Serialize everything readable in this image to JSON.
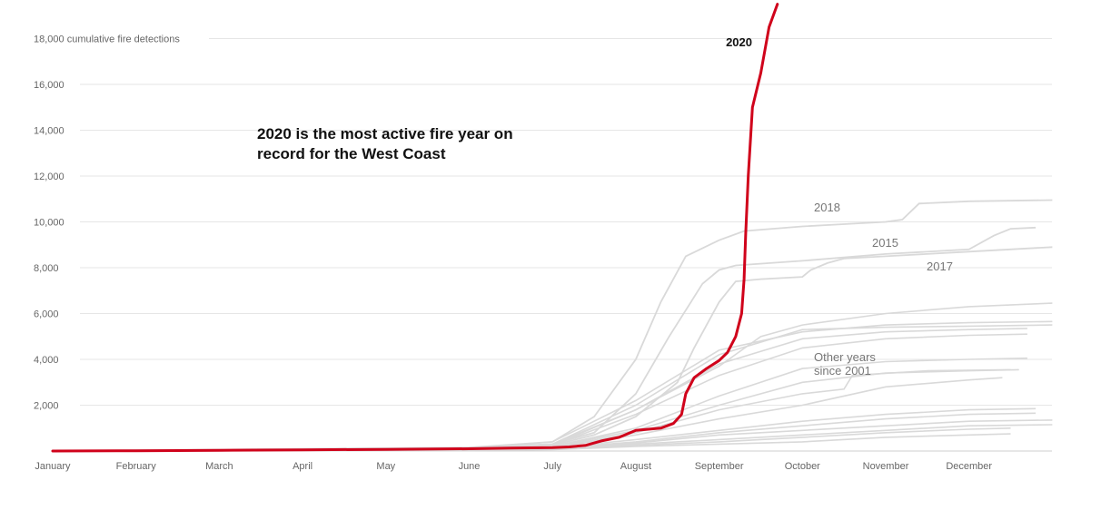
{
  "chart_data": {
    "type": "line",
    "title": "",
    "xlabel": "",
    "ylabel": "",
    "y_unit_label": "cumulative fire detections",
    "ylim": [
      0,
      18000
    ],
    "y_ticks": [
      2000,
      4000,
      6000,
      8000,
      10000,
      12000,
      14000,
      16000,
      18000
    ],
    "y_tick_labels": [
      "2,000",
      "4,000",
      "6,000",
      "8,000",
      "10,000",
      "12,000",
      "14,000",
      "16,000",
      "18,000"
    ],
    "x_unit": "month (fractional, 0 = start of January)",
    "xlim": [
      0,
      12
    ],
    "x_tick_labels": [
      "January",
      "February",
      "March",
      "April",
      "May",
      "June",
      "July",
      "August",
      "September",
      "October",
      "November",
      "December"
    ],
    "grid": "horizontal",
    "annotation": [
      "2020 is the most active fire year on",
      "record for the West Coast"
    ],
    "other_years_label": [
      "Other years",
      "since 2001"
    ],
    "highlight_color": "#d0021b",
    "other_color": "#d9d9d9",
    "highlight": {
      "name": "2020",
      "points": [
        [
          0,
          0
        ],
        [
          1,
          10
        ],
        [
          2,
          30
        ],
        [
          3,
          50
        ],
        [
          4,
          70
        ],
        [
          5,
          100
        ],
        [
          5.5,
          130
        ],
        [
          6,
          150
        ],
        [
          6.2,
          180
        ],
        [
          6.4,
          250
        ],
        [
          6.6,
          450
        ],
        [
          6.8,
          600
        ],
        [
          7,
          900
        ],
        [
          7.3,
          1000
        ],
        [
          7.45,
          1200
        ],
        [
          7.55,
          1600
        ],
        [
          7.6,
          2500
        ],
        [
          7.7,
          3200
        ],
        [
          7.85,
          3600
        ],
        [
          8,
          3950
        ],
        [
          8.1,
          4300
        ],
        [
          8.2,
          5000
        ],
        [
          8.27,
          6000
        ],
        [
          8.3,
          7500
        ],
        [
          8.32,
          9500
        ],
        [
          8.35,
          12000
        ],
        [
          8.4,
          15000
        ],
        [
          8.5,
          16500
        ],
        [
          8.6,
          18500
        ],
        [
          8.7,
          19500
        ]
      ]
    },
    "named_series": [
      {
        "name": "2018",
        "points": [
          [
            0,
            0
          ],
          [
            5,
            150
          ],
          [
            6,
            400
          ],
          [
            6.5,
            1500
          ],
          [
            7,
            4000
          ],
          [
            7.3,
            6500
          ],
          [
            7.6,
            8500
          ],
          [
            8,
            9200
          ],
          [
            8.3,
            9600
          ],
          [
            9,
            9800
          ],
          [
            9.5,
            9900
          ],
          [
            10,
            10000
          ],
          [
            10.2,
            10100
          ],
          [
            10.4,
            10800
          ],
          [
            11,
            10900
          ],
          [
            12,
            10950
          ]
        ]
      },
      {
        "name": "2015",
        "points": [
          [
            0,
            0
          ],
          [
            5,
            150
          ],
          [
            6,
            300
          ],
          [
            6.5,
            800
          ],
          [
            7,
            2500
          ],
          [
            7.4,
            5000
          ],
          [
            7.8,
            7300
          ],
          [
            8,
            7900
          ],
          [
            8.2,
            8100
          ],
          [
            9,
            8300
          ],
          [
            10,
            8600
          ],
          [
            11,
            8800
          ],
          [
            11.3,
            9400
          ],
          [
            11.5,
            9700
          ],
          [
            11.8,
            9750
          ]
        ]
      },
      {
        "name": "2017",
        "points": [
          [
            0,
            0
          ],
          [
            5,
            100
          ],
          [
            6,
            250
          ],
          [
            6.5,
            700
          ],
          [
            7,
            1500
          ],
          [
            7.5,
            3000
          ],
          [
            7.7,
            4500
          ],
          [
            8,
            6500
          ],
          [
            8.2,
            7400
          ],
          [
            8.5,
            7500
          ],
          [
            9,
            7600
          ],
          [
            9.1,
            7900
          ],
          [
            9.3,
            8200
          ],
          [
            9.5,
            8400
          ],
          [
            10,
            8500
          ],
          [
            11,
            8700
          ],
          [
            12,
            8900
          ]
        ]
      }
    ],
    "other_series": [
      [
        [
          0,
          0
        ],
        [
          5,
          100
        ],
        [
          6,
          300
        ],
        [
          7,
          1800
        ],
        [
          8,
          3700
        ],
        [
          8.5,
          5000
        ],
        [
          9,
          5500
        ],
        [
          10,
          6000
        ],
        [
          11,
          6300
        ],
        [
          12,
          6450
        ]
      ],
      [
        [
          0,
          0
        ],
        [
          5,
          100
        ],
        [
          6,
          400
        ],
        [
          7,
          2200
        ],
        [
          8,
          4400
        ],
        [
          9,
          5200
        ],
        [
          10,
          5500
        ],
        [
          11,
          5600
        ],
        [
          12,
          5650
        ]
      ],
      [
        [
          0,
          0
        ],
        [
          5,
          80
        ],
        [
          6,
          300
        ],
        [
          7,
          2000
        ],
        [
          8,
          4200
        ],
        [
          9,
          5300
        ],
        [
          10,
          5400
        ],
        [
          11,
          5450
        ],
        [
          12,
          5500
        ]
      ],
      [
        [
          0,
          0
        ],
        [
          5,
          80
        ],
        [
          6,
          250
        ],
        [
          7,
          1800
        ],
        [
          8,
          3800
        ],
        [
          9,
          4900
        ],
        [
          10,
          5200
        ],
        [
          11,
          5300
        ],
        [
          11.7,
          5350
        ]
      ],
      [
        [
          0,
          0
        ],
        [
          5,
          80
        ],
        [
          6,
          250
        ],
        [
          7,
          1600
        ],
        [
          8,
          3300
        ],
        [
          9,
          4500
        ],
        [
          10,
          4900
        ],
        [
          11,
          5050
        ],
        [
          11.7,
          5100
        ]
      ],
      [
        [
          0,
          0
        ],
        [
          5,
          60
        ],
        [
          6,
          200
        ],
        [
          7,
          1000
        ],
        [
          8,
          2400
        ],
        [
          9,
          3600
        ],
        [
          10,
          3900
        ],
        [
          11,
          4000
        ],
        [
          11.7,
          4050
        ]
      ],
      [
        [
          0,
          0
        ],
        [
          5,
          60
        ],
        [
          6,
          180
        ],
        [
          7,
          900
        ],
        [
          8,
          2000
        ],
        [
          9,
          3000
        ],
        [
          10,
          3400
        ],
        [
          11,
          3500
        ],
        [
          11.6,
          3550
        ]
      ],
      [
        [
          0,
          0
        ],
        [
          5,
          60
        ],
        [
          6,
          150
        ],
        [
          7,
          800
        ],
        [
          8,
          1800
        ],
        [
          9,
          2500
        ],
        [
          9.5,
          2700
        ],
        [
          9.6,
          3300
        ],
        [
          10.5,
          3500
        ],
        [
          11.5,
          3550
        ]
      ],
      [
        [
          0,
          0
        ],
        [
          5,
          50
        ],
        [
          6,
          150
        ],
        [
          7,
          700
        ],
        [
          8,
          1400
        ],
        [
          9,
          2000
        ],
        [
          10,
          2800
        ],
        [
          11,
          3100
        ],
        [
          11.4,
          3200
        ]
      ],
      [
        [
          0,
          0
        ],
        [
          5,
          50
        ],
        [
          6,
          130
        ],
        [
          7,
          500
        ],
        [
          8,
          900
        ],
        [
          9,
          1300
        ],
        [
          10,
          1600
        ],
        [
          11,
          1800
        ],
        [
          11.8,
          1850
        ]
      ],
      [
        [
          0,
          0
        ],
        [
          5,
          40
        ],
        [
          6,
          120
        ],
        [
          7,
          400
        ],
        [
          8,
          800
        ],
        [
          9,
          1100
        ],
        [
          10,
          1400
        ],
        [
          11,
          1600
        ],
        [
          11.8,
          1650
        ]
      ],
      [
        [
          0,
          0
        ],
        [
          5,
          40
        ],
        [
          6,
          100
        ],
        [
          7,
          350
        ],
        [
          8,
          700
        ],
        [
          9,
          900
        ],
        [
          10,
          1100
        ],
        [
          11,
          1300
        ],
        [
          12,
          1350
        ]
      ],
      [
        [
          0,
          0
        ],
        [
          5,
          30
        ],
        [
          6,
          90
        ],
        [
          7,
          300
        ],
        [
          8,
          500
        ],
        [
          9,
          700
        ],
        [
          10,
          900
        ],
        [
          11,
          1100
        ],
        [
          12,
          1150
        ]
      ],
      [
        [
          0,
          0
        ],
        [
          5,
          30
        ],
        [
          6,
          80
        ],
        [
          7,
          250
        ],
        [
          8,
          400
        ],
        [
          9,
          600
        ],
        [
          10,
          800
        ],
        [
          11,
          950
        ],
        [
          11.5,
          1000
        ]
      ],
      [
        [
          0,
          0
        ],
        [
          5,
          20
        ],
        [
          6,
          60
        ],
        [
          7,
          200
        ],
        [
          8,
          300
        ],
        [
          9,
          400
        ],
        [
          10,
          600
        ],
        [
          11,
          700
        ],
        [
          11.5,
          750
        ]
      ]
    ]
  }
}
